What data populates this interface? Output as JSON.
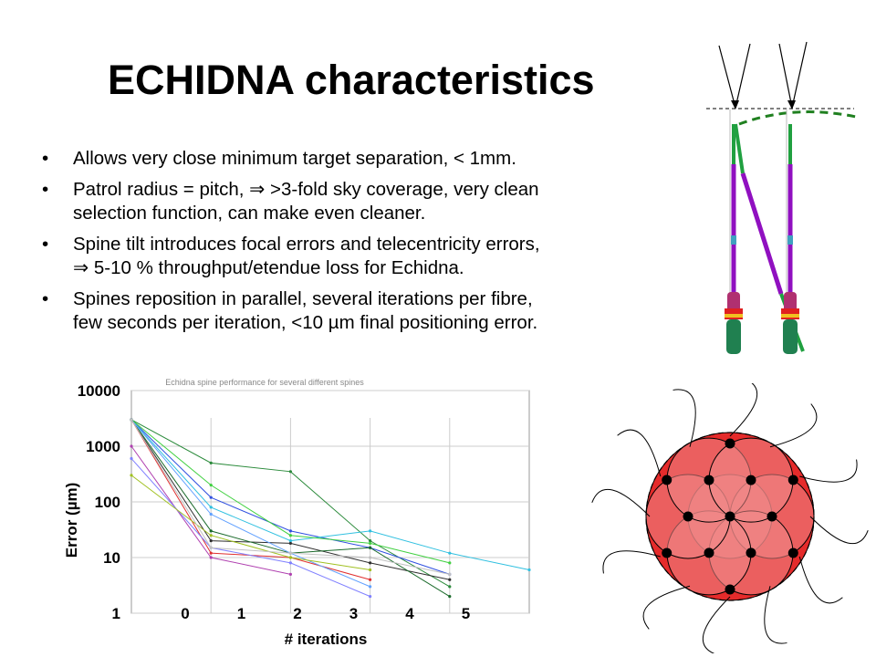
{
  "slide": {
    "title": "ECHIDNA characteristics",
    "bullets": [
      {
        "lines": [
          "Allows very close minimum target separation, < 1mm."
        ]
      },
      {
        "lines": [
          "Patrol radius = pitch, ⇒ >3-fold sky coverage, very clean",
          "selection function, can make even cleaner."
        ]
      },
      {
        "lines": [
          "Spine tilt introduces focal errors and telecentricity errors,",
          "⇒ 5-10 % throughput/etendue loss for Echidna."
        ]
      },
      {
        "lines": [
          "Spines reposition in parallel, several iterations per fibre,",
          "few seconds per iteration, <10 µm final positioning error."
        ]
      }
    ]
  },
  "chart_data": {
    "type": "line",
    "title": "Echidna spine performance for several different spines",
    "xlabel": "# iterations",
    "ylabel": "Error (µm)",
    "y_scale": "log",
    "ylim": [
      1,
      10000
    ],
    "xlim": [
      0,
      5
    ],
    "y_ticks": [
      "10000",
      "1000",
      "100",
      "10",
      "1"
    ],
    "x_ticks": [
      "0",
      "1",
      "2",
      "3",
      "4",
      "5"
    ],
    "grid": true,
    "series": [
      {
        "color": "#2a8a3a",
        "points": [
          [
            0,
            3000
          ],
          [
            1,
            500
          ],
          [
            2,
            350
          ],
          [
            3,
            20
          ],
          [
            4,
            3
          ]
        ]
      },
      {
        "color": "#3050e0",
        "points": [
          [
            0,
            3000
          ],
          [
            1,
            120
          ],
          [
            2,
            30
          ],
          [
            3,
            15
          ],
          [
            4,
            5
          ]
        ]
      },
      {
        "color": "#30c0e0",
        "points": [
          [
            0,
            3000
          ],
          [
            1,
            80
          ],
          [
            2,
            20
          ],
          [
            3,
            30
          ],
          [
            4,
            12
          ],
          [
            5,
            6
          ]
        ]
      },
      {
        "color": "#40d040",
        "points": [
          [
            0,
            3000
          ],
          [
            1,
            200
          ],
          [
            2,
            25
          ],
          [
            3,
            18
          ],
          [
            4,
            8
          ]
        ]
      },
      {
        "color": "#e03030",
        "points": [
          [
            0,
            3000
          ],
          [
            1,
            12
          ],
          [
            2,
            10
          ],
          [
            3,
            4
          ]
        ]
      },
      {
        "color": "#b040b0",
        "points": [
          [
            0,
            1000
          ],
          [
            1,
            10
          ],
          [
            2,
            5
          ]
        ]
      },
      {
        "color": "#303030",
        "points": [
          [
            0,
            3000
          ],
          [
            1,
            20
          ],
          [
            2,
            18
          ],
          [
            3,
            8
          ],
          [
            4,
            4
          ]
        ]
      },
      {
        "color": "#8080ff",
        "points": [
          [
            0,
            600
          ],
          [
            1,
            15
          ],
          [
            2,
            8
          ],
          [
            3,
            2
          ]
        ]
      },
      {
        "color": "#1a6a2a",
        "points": [
          [
            0,
            3000
          ],
          [
            1,
            30
          ],
          [
            2,
            12
          ],
          [
            3,
            15
          ],
          [
            4,
            2
          ]
        ]
      },
      {
        "color": "#60a0ff",
        "points": [
          [
            0,
            3000
          ],
          [
            1,
            60
          ],
          [
            2,
            12
          ],
          [
            3,
            3
          ]
        ]
      },
      {
        "color": "#a0c020",
        "points": [
          [
            0,
            300
          ],
          [
            1,
            25
          ],
          [
            2,
            10
          ],
          [
            3,
            6
          ]
        ]
      },
      {
        "color": "#c0c0c0",
        "points": [
          [
            0,
            3000
          ],
          [
            1,
            15
          ],
          [
            2,
            12
          ],
          [
            3,
            10
          ],
          [
            4,
            5
          ]
        ]
      }
    ]
  },
  "diagram": {
    "colors": {
      "spine_purple": "#9010c0",
      "spine_green": "#20a040",
      "focal_dash": "#208020",
      "accent_red": "#e02020",
      "accent_yellow": "#f0c020",
      "patrol_dark": "#e52b2b",
      "patrol_light": "#f08a8a"
    }
  }
}
